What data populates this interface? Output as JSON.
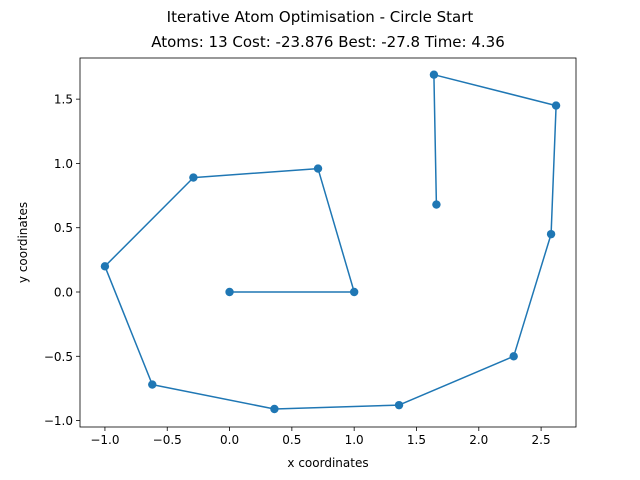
{
  "chart_data": {
    "type": "line",
    "title": "Iterative Atom Optimisation - Circle Start",
    "subtitle": "Atoms: 13 Cost: -23.876 Best: -27.8 Time: 4.36",
    "xlabel": "x coordinates",
    "ylabel": "y coordinates",
    "xlim": [
      -1.2,
      2.78
    ],
    "ylim": [
      -1.05,
      1.82
    ],
    "xticks": [
      -1.0,
      -0.5,
      0.0,
      0.5,
      1.0,
      1.5,
      2.0,
      2.5
    ],
    "xtick_labels": [
      "−1.0",
      "−0.5",
      "0.0",
      "0.5",
      "1.0",
      "1.5",
      "2.0",
      "2.5"
    ],
    "yticks": [
      -1.0,
      -0.5,
      0.0,
      0.5,
      1.0,
      1.5
    ],
    "ytick_labels": [
      "−1.0",
      "−0.5",
      "0.0",
      "0.5",
      "1.0",
      "1.5"
    ],
    "grid": false,
    "color": "#1f77b4",
    "series": [
      {
        "x": [
          0.0,
          1.0,
          0.71,
          -0.29,
          -1.0,
          -0.62,
          0.36,
          1.36,
          2.28,
          2.58,
          2.62,
          1.64,
          1.66
        ],
        "y": [
          0.0,
          0.0,
          0.96,
          0.89,
          0.2,
          -0.72,
          -0.91,
          -0.88,
          -0.5,
          0.45,
          1.45,
          1.69,
          0.68
        ]
      }
    ]
  }
}
